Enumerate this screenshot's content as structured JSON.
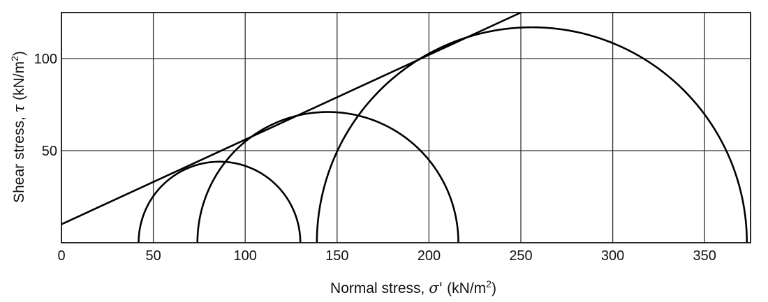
{
  "chart_data": {
    "type": "line",
    "xlabel": {
      "text": "Normal stress, ",
      "symbol": "σ'",
      "unit": "(kN/m",
      "exp": "2",
      "close": ")"
    },
    "ylabel": {
      "text": "Shear stress, ",
      "symbol": "τ",
      "unit": "(kN/m",
      "exp": "2",
      "close": ")"
    },
    "xlim": [
      0,
      375
    ],
    "ylim": [
      0,
      125
    ],
    "x_ticks": [
      0,
      50,
      100,
      150,
      200,
      250,
      300,
      350
    ],
    "x_tick_labels": [
      "0",
      "50",
      "100",
      "150",
      "200",
      "250",
      "300",
      "350"
    ],
    "y_ticks": [
      50,
      100
    ],
    "y_tick_labels": [
      "50",
      "100"
    ],
    "grid": true,
    "series": [
      {
        "kind": "failure_envelope",
        "x": [
          0,
          250
        ],
        "y": [
          10,
          125
        ]
      },
      {
        "kind": "mohr_circle",
        "sigma3": 42,
        "sigma1": 130
      },
      {
        "kind": "mohr_circle",
        "sigma3": 74,
        "sigma1": 216
      },
      {
        "kind": "mohr_circle",
        "sigma3": 139,
        "sigma1": 373
      }
    ]
  }
}
